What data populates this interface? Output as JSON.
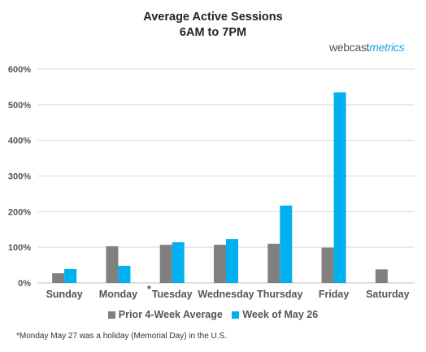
{
  "chart_data": {
    "type": "bar",
    "title_line1": "Average Active Sessions",
    "title_line2": "6AM to 7PM",
    "categories": [
      "Sunday",
      "Monday",
      "Tuesday",
      "Wednesday",
      "Thursday",
      "Friday",
      "Saturday"
    ],
    "category_marks": [
      "",
      "*",
      "",
      "",
      "",
      "",
      ""
    ],
    "series": [
      {
        "name": "Prior 4-Week Average",
        "color": "#808080",
        "values": [
          27,
          103,
          107,
          107,
          110,
          99,
          38
        ]
      },
      {
        "name": "Week of May 26",
        "color": "#00b0f0",
        "values": [
          39,
          48,
          114,
          123,
          217,
          535,
          null
        ]
      }
    ],
    "ylim": [
      0,
      600
    ],
    "yticks": [
      0,
      100,
      200,
      300,
      400,
      500,
      600
    ],
    "ytick_labels": [
      "0%",
      "100%",
      "200%",
      "300%",
      "400%",
      "500%",
      "600%"
    ],
    "grid": true,
    "legend_position": "bottom"
  },
  "brand": {
    "part1": "webcast",
    "part2": "metrics"
  },
  "footnote": "*Monday May 27 was a holiday (Memorial Day) in the U.S."
}
